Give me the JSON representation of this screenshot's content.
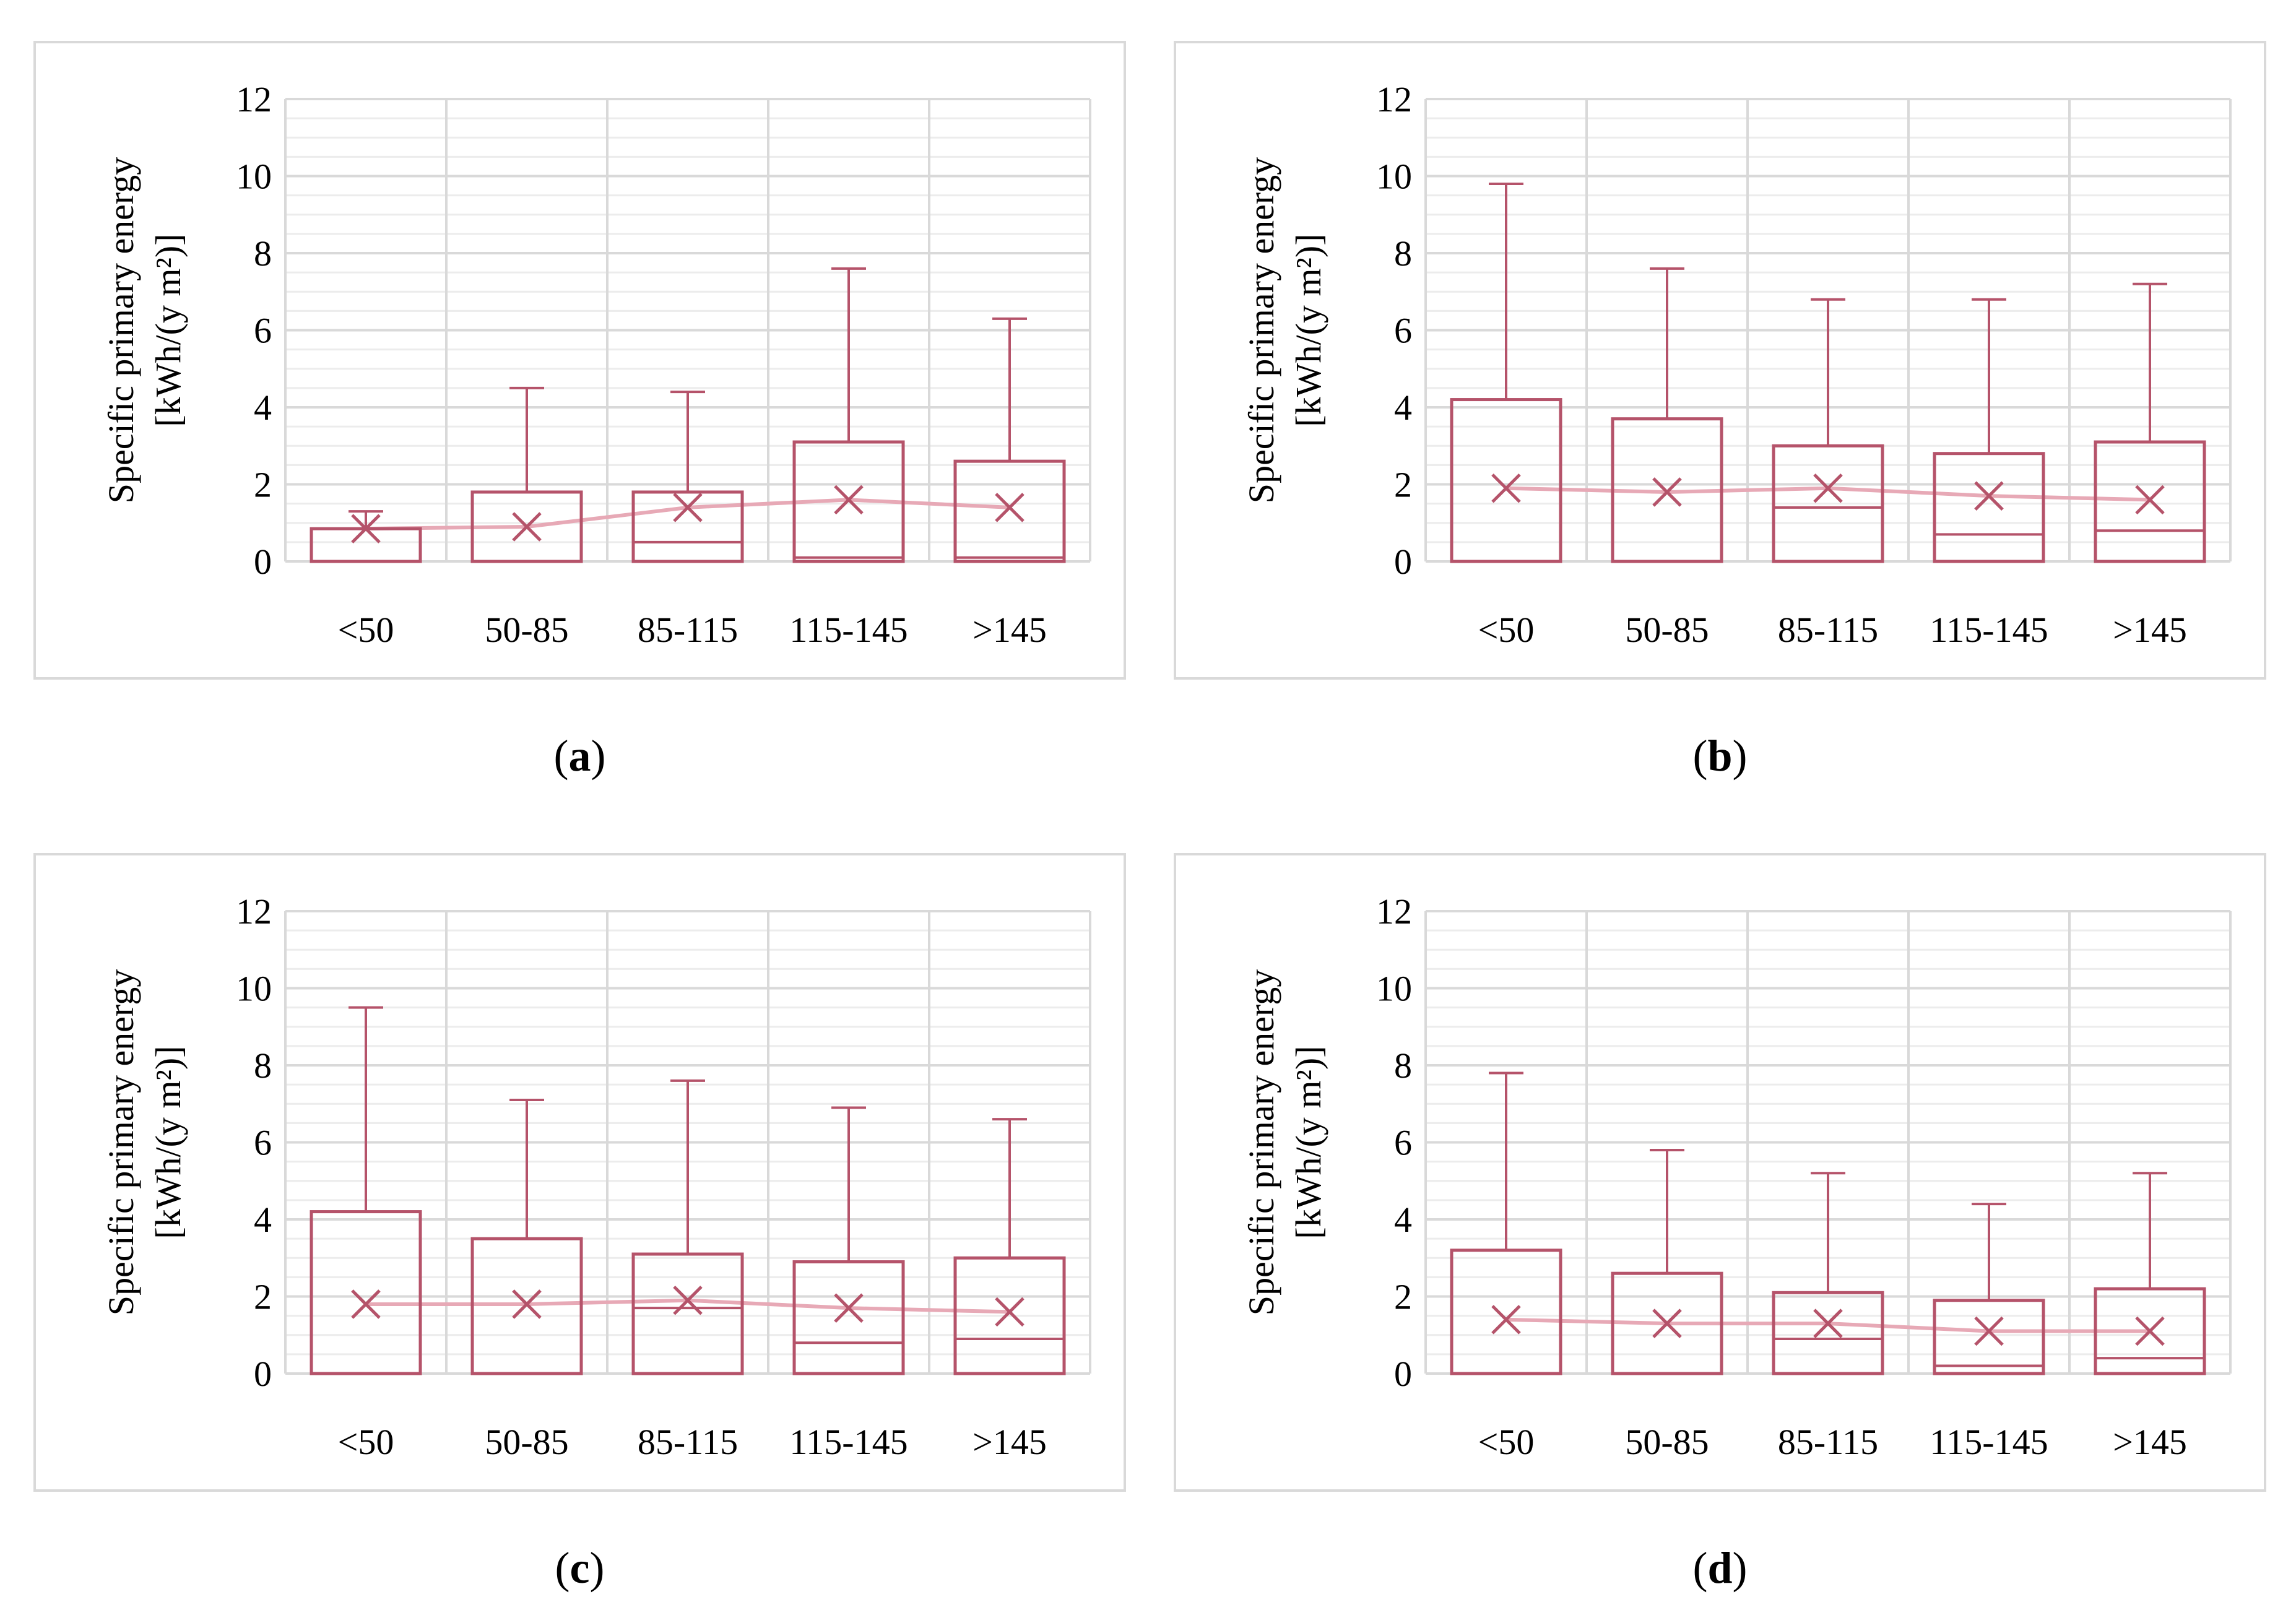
{
  "figure": {
    "colors": {
      "box": "#b5536a",
      "mean_line": "#e7a9b6",
      "grid_major": "#d9d9d9",
      "grid_minor": "#ececec",
      "border": "#d9d9d9",
      "text": "#000000"
    }
  },
  "chart_data": [
    {
      "id": "a",
      "label": "a",
      "type": "box",
      "ylabel_line1": "Specific primary energy",
      "ylabel_line2": "[kWh/(y m²)]",
      "ylim": [
        0,
        12
      ],
      "yticks": [
        "0",
        "2",
        "4",
        "6",
        "8",
        "10",
        "12"
      ],
      "categories": [
        "<50",
        "50-85",
        "85-115",
        "115-145",
        ">145"
      ],
      "boxes": [
        {
          "min": 0,
          "q1": 0,
          "q3": 0.85,
          "max": 1.3,
          "mean": 0.85
        },
        {
          "min": 0,
          "q1": 0,
          "q3": 1.8,
          "max": 4.5,
          "mean": 0.9
        },
        {
          "min": 0,
          "q1": 0.5,
          "q3": 1.8,
          "max": 4.4,
          "mean": 1.4
        },
        {
          "min": 0,
          "q1": 0.1,
          "q3": 3.1,
          "max": 7.6,
          "mean": 1.6
        },
        {
          "min": 0,
          "q1": 0.1,
          "q3": 2.6,
          "max": 6.3,
          "mean": 1.4
        }
      ]
    },
    {
      "id": "b",
      "label": "b",
      "type": "box",
      "ylabel_line1": "Specific primary energy",
      "ylabel_line2": "[kWh/(y m²)]",
      "ylim": [
        0,
        12
      ],
      "yticks": [
        "0",
        "2",
        "4",
        "6",
        "8",
        "10",
        "12"
      ],
      "categories": [
        "<50",
        "50-85",
        "85-115",
        "115-145",
        ">145"
      ],
      "boxes": [
        {
          "min": 0,
          "q1": 0,
          "q3": 4.2,
          "max": 9.8,
          "mean": 1.9
        },
        {
          "min": 0,
          "q1": 0,
          "q3": 3.7,
          "max": 7.6,
          "mean": 1.8
        },
        {
          "min": 0,
          "q1": 1.4,
          "q3": 3.0,
          "max": 6.8,
          "mean": 1.9
        },
        {
          "min": 0,
          "q1": 0.7,
          "q3": 2.8,
          "max": 6.8,
          "mean": 1.7
        },
        {
          "min": 0,
          "q1": 0.8,
          "q3": 3.1,
          "max": 7.2,
          "mean": 1.6
        }
      ]
    },
    {
      "id": "c",
      "label": "c",
      "type": "box",
      "ylabel_line1": "Specific primary energy",
      "ylabel_line2": "[kWh/(y m²)]",
      "ylim": [
        0,
        12
      ],
      "yticks": [
        "0",
        "2",
        "4",
        "6",
        "8",
        "10",
        "12"
      ],
      "categories": [
        "<50",
        "50-85",
        "85-115",
        "115-145",
        ">145"
      ],
      "boxes": [
        {
          "min": 0,
          "q1": 0,
          "q3": 4.2,
          "max": 9.5,
          "mean": 1.8
        },
        {
          "min": 0,
          "q1": 0,
          "q3": 3.5,
          "max": 7.1,
          "mean": 1.8
        },
        {
          "min": 0,
          "q1": 1.7,
          "q3": 3.1,
          "max": 7.6,
          "mean": 1.9
        },
        {
          "min": 0,
          "q1": 0.8,
          "q3": 2.9,
          "max": 6.9,
          "mean": 1.7
        },
        {
          "min": 0,
          "q1": 0.9,
          "q3": 3.0,
          "max": 6.6,
          "mean": 1.6
        }
      ]
    },
    {
      "id": "d",
      "label": "d",
      "type": "box",
      "ylabel_line1": "Specific primary energy",
      "ylabel_line2": "[kWh/(y m²)]",
      "ylim": [
        0,
        12
      ],
      "yticks": [
        "0",
        "2",
        "4",
        "6",
        "8",
        "10",
        "12"
      ],
      "categories": [
        "<50",
        "50-85",
        "85-115",
        "115-145",
        ">145"
      ],
      "boxes": [
        {
          "min": 0,
          "q1": 0,
          "q3": 3.2,
          "max": 7.8,
          "mean": 1.4
        },
        {
          "min": 0,
          "q1": 0,
          "q3": 2.6,
          "max": 5.8,
          "mean": 1.3
        },
        {
          "min": 0,
          "q1": 0.9,
          "q3": 2.1,
          "max": 5.2,
          "mean": 1.3
        },
        {
          "min": 0,
          "q1": 0.2,
          "q3": 1.9,
          "max": 4.4,
          "mean": 1.1
        },
        {
          "min": 0,
          "q1": 0.4,
          "q3": 2.2,
          "max": 5.2,
          "mean": 1.1
        }
      ]
    }
  ]
}
